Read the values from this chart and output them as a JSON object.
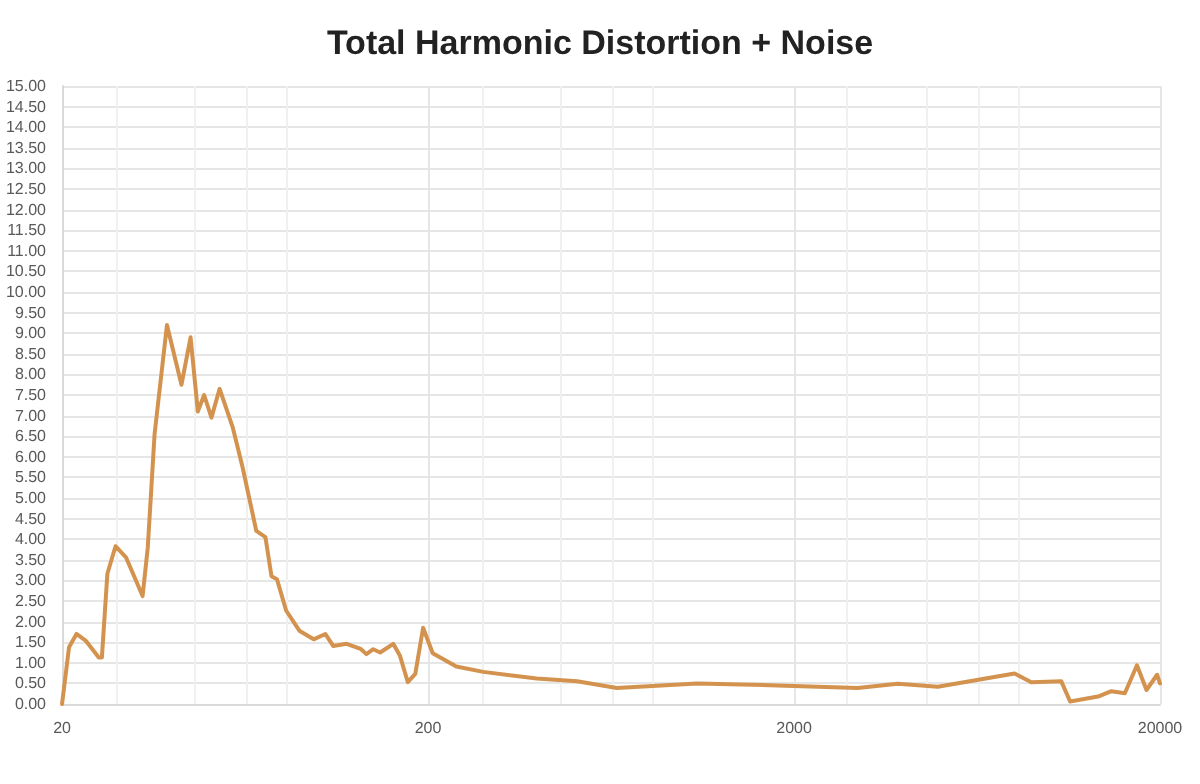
{
  "chart_data": {
    "type": "line",
    "title": "Total Harmonic Distortion + Noise",
    "log": "x",
    "grid": true,
    "marker": "none",
    "line_style": "solid",
    "xlim": [
      20,
      20000
    ],
    "xticks": [
      20,
      200,
      2000,
      20000
    ],
    "ylim": [
      0,
      15
    ],
    "yticks": [
      {
        "value": 0,
        "label": "0.00"
      },
      {
        "value": 0.5,
        "label": "0.50"
      },
      {
        "value": 1,
        "label": "1.00"
      },
      {
        "value": 1.5,
        "label": "1.50"
      },
      {
        "value": 2,
        "label": "2.00"
      },
      {
        "value": 2.5,
        "label": "2.50"
      },
      {
        "value": 3,
        "label": "3.00"
      },
      {
        "value": 3.5,
        "label": "3.50"
      },
      {
        "value": 4,
        "label": "4.00"
      },
      {
        "value": 4.5,
        "label": "4.50"
      },
      {
        "value": 5,
        "label": "5.00"
      },
      {
        "value": 5.5,
        "label": "5.50"
      },
      {
        "value": 6,
        "label": "6.00"
      },
      {
        "value": 6.5,
        "label": "6.50"
      },
      {
        "value": 7,
        "label": "7.00"
      },
      {
        "value": 7.5,
        "label": "7.50"
      },
      {
        "value": 8,
        "label": "8.00"
      },
      {
        "value": 8.5,
        "label": "8.50"
      },
      {
        "value": 9,
        "label": "9.00"
      },
      {
        "value": 9.5,
        "label": "9.50"
      },
      {
        "value": 10,
        "label": "10.00"
      },
      {
        "value": 10.5,
        "label": "10.50"
      },
      {
        "value": 11,
        "label": "11.00"
      },
      {
        "value": 11.5,
        "label": "11.50"
      },
      {
        "value": 12,
        "label": "12.00"
      },
      {
        "value": 12.5,
        "label": "12.50"
      },
      {
        "value": 13,
        "label": "13.00"
      },
      {
        "value": 13.5,
        "label": "13.50"
      },
      {
        "value": 14,
        "label": "14.00"
      },
      {
        "value": 14.5,
        "label": "14.50"
      },
      {
        "value": 15,
        "label": "15.00"
      }
    ],
    "series": [
      {
        "color": "#d4924f",
        "x": [
          20,
          20.9,
          21.9,
          23.2,
          25.2,
          25.7,
          26.6,
          28,
          29.9,
          33.2,
          34.3,
          35.8,
          38.7,
          42.4,
          44.9,
          47,
          48.9,
          51.2,
          53.9,
          58.6,
          62.3,
          67.9,
          71.9,
          74.7,
          77.3,
          81.9,
          89,
          97.4,
          104.8,
          110.1,
          119.9,
          130.8,
          135.7,
          141.7,
          148,
          160.7,
          167.5,
          176.1,
          184.6,
          193.9,
          206,
          239,
          283,
          396,
          511,
          656,
          1087,
          1806,
          2985,
          3838,
          4943,
          8010,
          8900,
          10750,
          11360,
          13540,
          14730,
          16030,
          17300,
          18370,
          19640,
          20000
        ],
        "values": [
          0,
          1.38,
          1.7,
          1.54,
          1.13,
          1.13,
          3.16,
          3.83,
          3.56,
          2.62,
          3.8,
          6.55,
          9.2,
          7.75,
          8.9,
          7.1,
          7.5,
          6.95,
          7.65,
          6.7,
          5.74,
          4.2,
          4.05,
          3.1,
          3.03,
          2.27,
          1.78,
          1.57,
          1.7,
          1.41,
          1.46,
          1.34,
          1.21,
          1.33,
          1.25,
          1.46,
          1.18,
          0.53,
          0.73,
          1.85,
          1.23,
          0.91,
          0.78,
          0.62,
          0.55,
          0.39,
          0.5,
          0.45,
          0.39,
          0.49,
          0.42,
          0.74,
          0.53,
          0.55,
          0.06,
          0.18,
          0.31,
          0.26,
          0.94,
          0.34,
          0.71,
          0.5
        ]
      }
    ]
  }
}
